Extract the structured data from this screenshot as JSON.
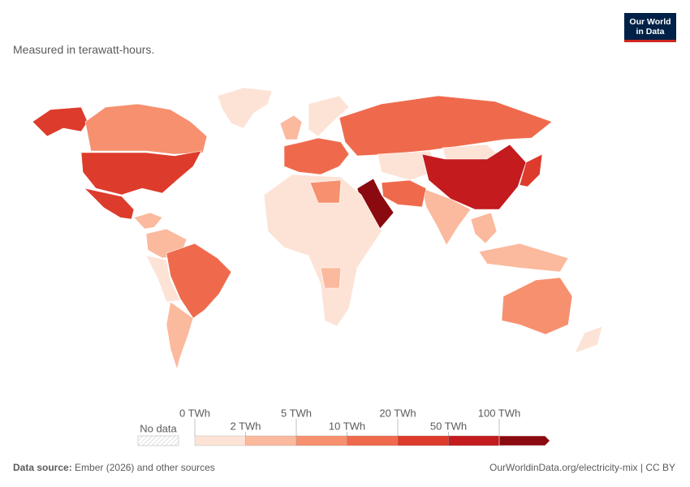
{
  "header": {
    "subtitle": "Measured in terawatt-hours.",
    "logo": [
      "Our World",
      "in Data"
    ]
  },
  "legend": {
    "no_data": "No data",
    "bins": [
      {
        "label": "0 TWh",
        "color": "#fde3d6"
      },
      {
        "label": "2 TWh",
        "color": "#fbb99e"
      },
      {
        "label": "5 TWh",
        "color": "#f6906f"
      },
      {
        "label": "10 TWh",
        "color": "#ef6a4c"
      },
      {
        "label": "20 TWh",
        "color": "#dd3b2c"
      },
      {
        "label": "50 TWh",
        "color": "#c31b1e"
      },
      {
        "label": "100 TWh",
        "color": "#8a0a10"
      }
    ]
  },
  "footer": {
    "source_label": "Data source:",
    "source": "Ember (2026) and other sources",
    "url": "OurWorldinData.org/electricity-mix | CC BY"
  }
}
